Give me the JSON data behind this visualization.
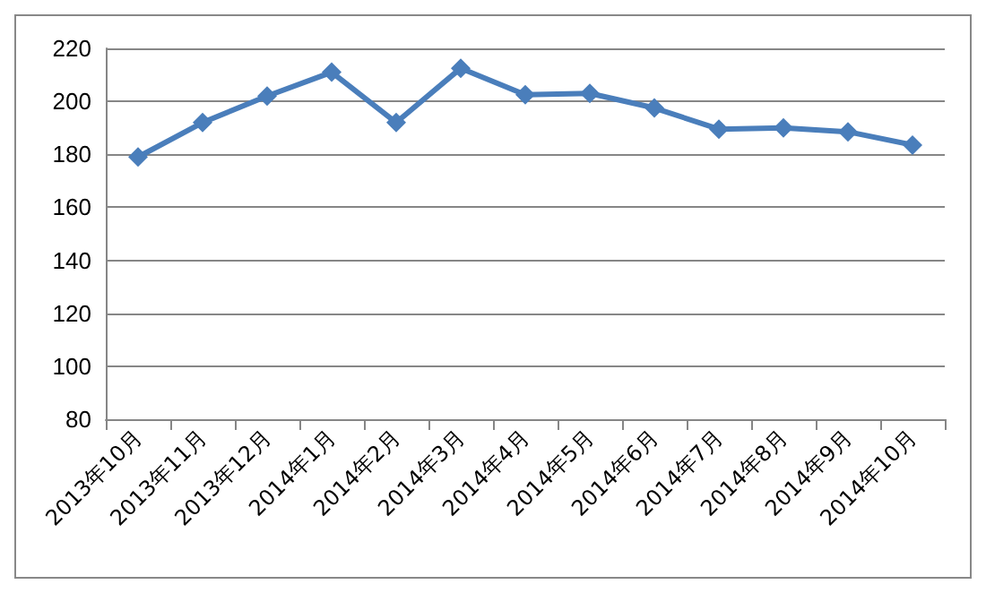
{
  "chart_data": {
    "type": "line",
    "categories": [
      "2013年10月",
      "2013年11月",
      "2013年12月",
      "2014年1月",
      "2014年2月",
      "2014年3月",
      "2014年4月",
      "2014年5月",
      "2014年6月",
      "2014年7月",
      "2014年8月",
      "2014年9月",
      "2014年10月"
    ],
    "series": [
      {
        "color": "#4a7ebb",
        "values": [
          179,
          192,
          202,
          211,
          192,
          212.5,
          202.5,
          203,
          197.5,
          189.5,
          190,
          188.5,
          183.5
        ]
      }
    ],
    "ylim": [
      80,
      220
    ],
    "yticks": [
      80,
      100,
      120,
      140,
      160,
      180,
      200,
      220
    ],
    "grid": "y",
    "marker": "diamond",
    "line_style": "solid"
  }
}
